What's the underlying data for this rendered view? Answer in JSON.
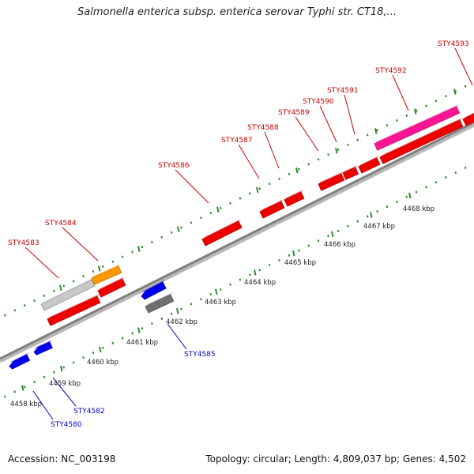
{
  "title": "Salmonella enterica subsp. enterica serovar Typhi str. CT18,...",
  "footer": {
    "accession": "Accession: NC_003198",
    "stats": "Topology: circular; Length: 4,809,037 bp; Genes: 4,502"
  },
  "colors": {
    "backbone": "#808080",
    "tick": "#2e8b2e",
    "forward_gene": "#ee0000",
    "reverse_gene": "#0000ee",
    "forward_label": "#cc0000",
    "reverse_label": "#0000cc"
  },
  "ticks": [
    "4458 kbp",
    "4459 kbp",
    "4460 kbp",
    "4461 kbp",
    "4462 kbp",
    "4463 kbp",
    "4464 kbp",
    "4465 kbp",
    "4466 kbp",
    "4467 kbp",
    "4468 kbp"
  ],
  "forward_labels": [
    "STY4583",
    "STY4584",
    "STY4586",
    "STY4587",
    "STY4588",
    "STY4589",
    "STY4590",
    "STY4591",
    "STY4592",
    "STY4593"
  ],
  "reverse_labels": [
    "STY4580",
    "STY4582",
    "STY4585"
  ],
  "features": [
    {
      "name": "grey-gene",
      "color": "#c8c8c8"
    },
    {
      "name": "orange-gene",
      "color": "#ff9900"
    },
    {
      "name": "magenta-gene",
      "color": "#ff1493"
    },
    {
      "name": "dark-grey-gene",
      "color": "#707070"
    }
  ]
}
